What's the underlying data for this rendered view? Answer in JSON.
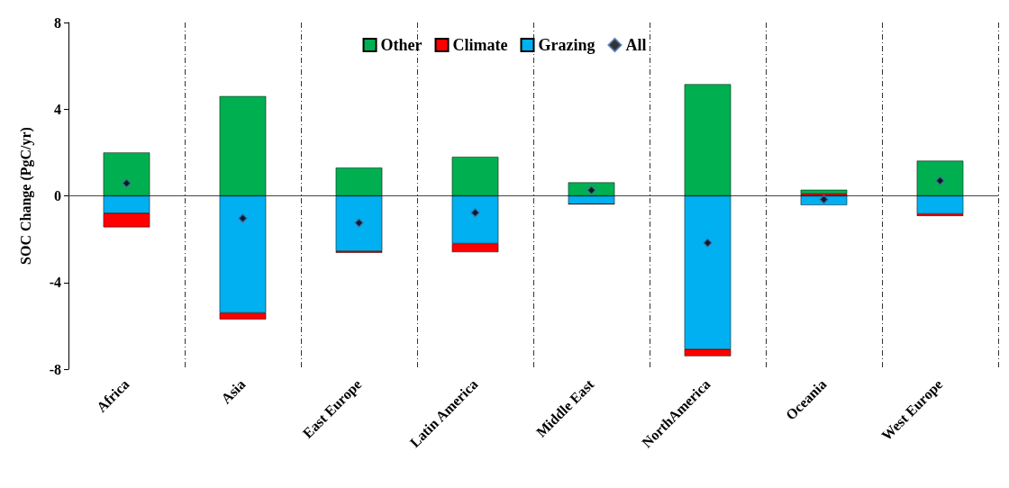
{
  "chart_data": {
    "type": "bar",
    "stacked": true,
    "ylabel": "SOC Change (PgC/yr)",
    "categories": [
      "Africa",
      "Asia",
      "East Europe",
      "Latin America",
      "Middle East",
      "NorthAmerica",
      "Oceania",
      "West Europe"
    ],
    "series": [
      {
        "name": "Grazing",
        "color": "#00b0f0",
        "values": [
          -0.8,
          -5.4,
          -2.55,
          -2.2,
          -0.38,
          -7.08,
          -0.43,
          -0.83
        ]
      },
      {
        "name": "Climate",
        "color": "#ff0000",
        "values": [
          -0.65,
          -0.3,
          -0.08,
          -0.4,
          0,
          -0.32,
          0.1,
          -0.1
        ]
      },
      {
        "name": "Other",
        "color": "#00b050",
        "values": [
          2.0,
          4.6,
          1.3,
          1.8,
          0.62,
          5.15,
          0.18,
          1.62
        ]
      },
      {
        "name": "All",
        "type": "scatter",
        "marker": "diamond",
        "color": "#000000",
        "values": [
          0.58,
          -1.04,
          -1.25,
          -0.78,
          0.26,
          -2.17,
          -0.17,
          0.7
        ]
      }
    ],
    "ylim": [
      -8,
      8
    ],
    "yticks": [
      -8,
      -4,
      0,
      4,
      8
    ],
    "grid": "x",
    "legend": "top"
  }
}
